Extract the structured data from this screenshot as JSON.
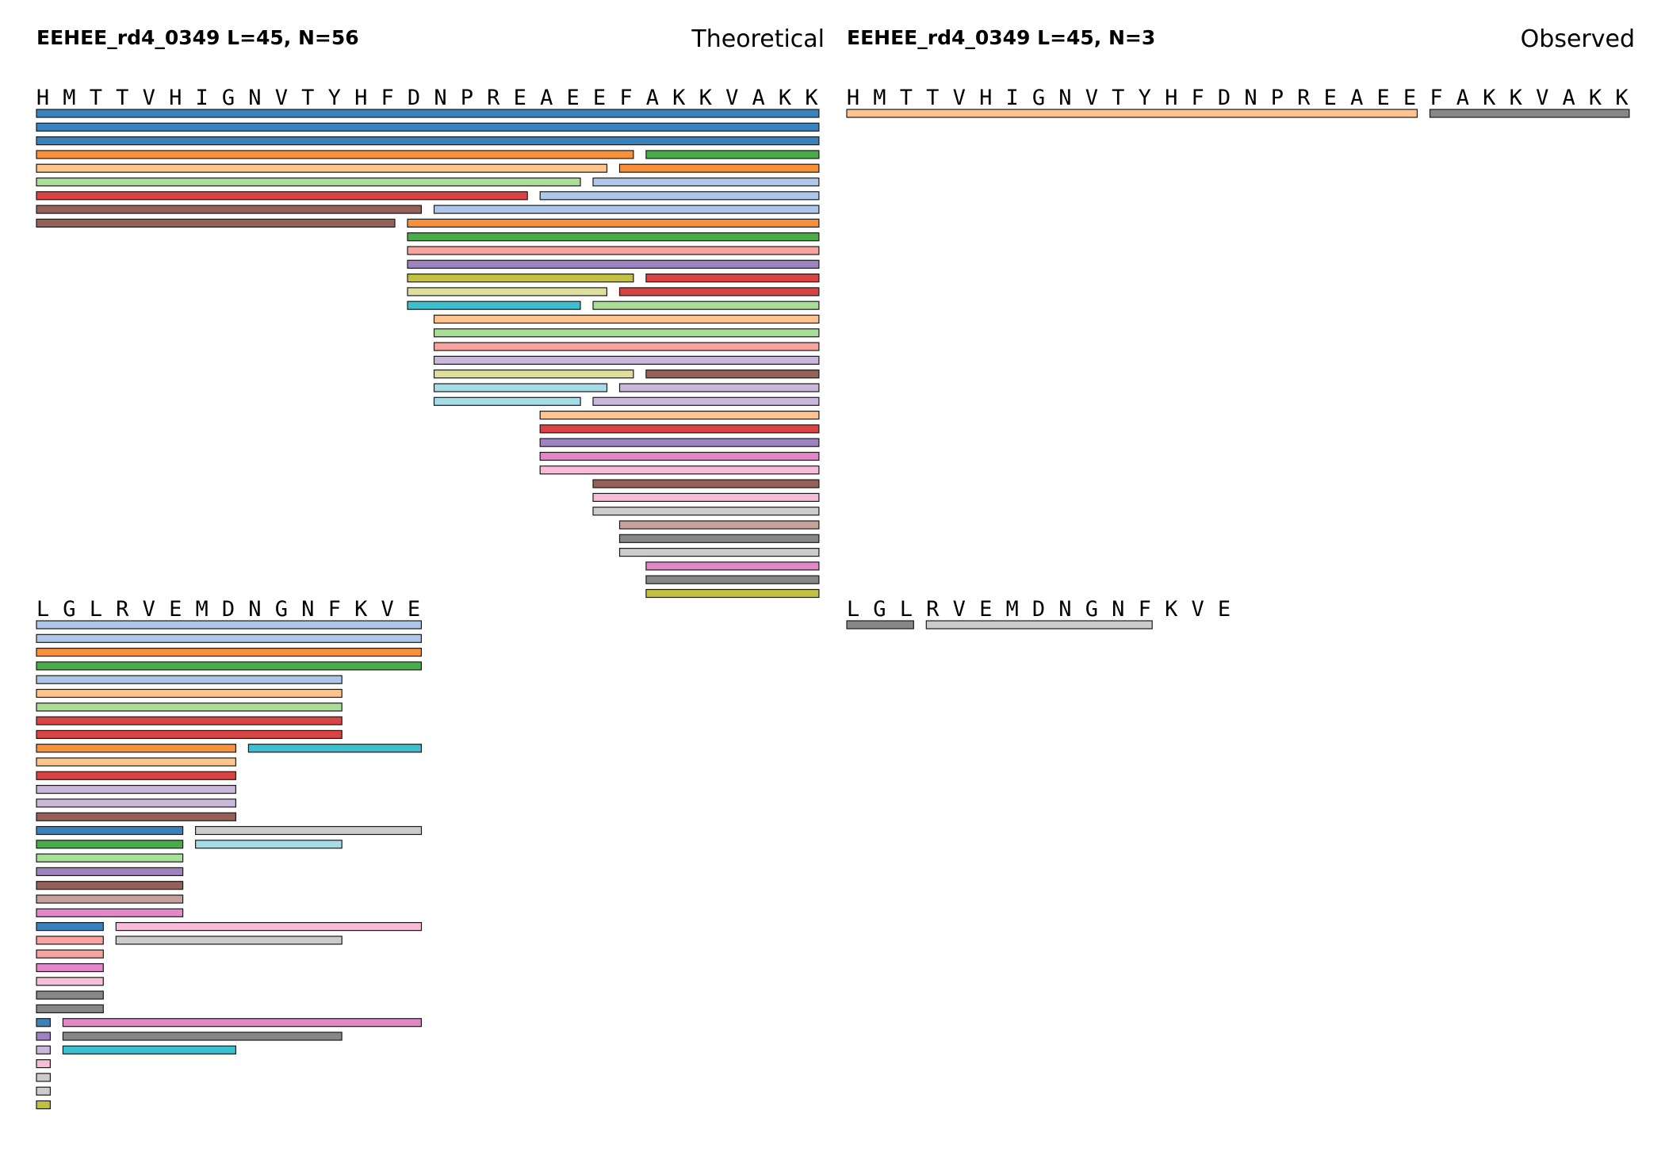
{
  "panels": {
    "theoretical": {
      "title": "EEHEE_rd4_0349  L=45, N=56",
      "label": "Theoretical"
    },
    "observed": {
      "title": "EEHEE_rd4_0349  L=45, N=3",
      "label": "Observed"
    }
  },
  "sequence_rows": [
    "HMTTVHIGNVTYHFDNPREAEEFAKKVAKK",
    "LGLRVEMDNGNFKVE"
  ],
  "palette": {
    "blue": "#3a82bc",
    "lblue": "#aec7e8",
    "orange": "#f7923a",
    "lorange": "#fdc48d",
    "green": "#4aab4a",
    "lgreen": "#a8de96",
    "red": "#d84344",
    "pink": "#f9a3a1",
    "purple": "#9e82c2",
    "lpurple": "#c9b8da",
    "brown": "#946058",
    "lbrown": "#c7a29a",
    "magenta": "#e387c8",
    "lpink": "#f7bcd7",
    "gray": "#878787",
    "lgray": "#cccccc",
    "olive": "#c2c042",
    "lolive": "#dfdf9d",
    "cyan": "#3cbfcf",
    "lcyan": "#a7dce6"
  },
  "theoretical_fragments": [
    {
      "start": 1,
      "end": 30,
      "level": 0,
      "color": "blue"
    },
    {
      "start": 1,
      "end": 30,
      "level": 1,
      "color": "blue"
    },
    {
      "start": 1,
      "end": 30,
      "level": 2,
      "color": "blue"
    },
    {
      "start": 1,
      "end": 23,
      "level": 3,
      "color": "orange"
    },
    {
      "start": 24,
      "end": 30,
      "level": 3,
      "color": "green"
    },
    {
      "start": 1,
      "end": 22,
      "level": 4,
      "color": "lorange"
    },
    {
      "start": 23,
      "end": 30,
      "level": 4,
      "color": "orange"
    },
    {
      "start": 1,
      "end": 21,
      "level": 5,
      "color": "lgreen"
    },
    {
      "start": 22,
      "end": 30,
      "level": 5,
      "color": "lblue"
    },
    {
      "start": 1,
      "end": 19,
      "level": 6,
      "color": "red"
    },
    {
      "start": 20,
      "end": 30,
      "level": 6,
      "color": "lblue"
    },
    {
      "start": 1,
      "end": 15,
      "level": 7,
      "color": "brown"
    },
    {
      "start": 16,
      "end": 30,
      "level": 7,
      "color": "lblue"
    },
    {
      "start": 1,
      "end": 14,
      "level": 8,
      "color": "brown"
    },
    {
      "start": 15,
      "end": 30,
      "level": 8,
      "color": "orange"
    },
    {
      "start": 15,
      "end": 30,
      "level": 9,
      "color": "green"
    },
    {
      "start": 15,
      "end": 30,
      "level": 10,
      "color": "pink"
    },
    {
      "start": 15,
      "end": 30,
      "level": 11,
      "color": "purple"
    },
    {
      "start": 15,
      "end": 23,
      "level": 12,
      "color": "olive"
    },
    {
      "start": 24,
      "end": 30,
      "level": 12,
      "color": "red"
    },
    {
      "start": 15,
      "end": 22,
      "level": 13,
      "color": "lolive"
    },
    {
      "start": 23,
      "end": 30,
      "level": 13,
      "color": "red"
    },
    {
      "start": 15,
      "end": 21,
      "level": 14,
      "color": "cyan"
    },
    {
      "start": 22,
      "end": 30,
      "level": 14,
      "color": "lgreen"
    },
    {
      "start": 16,
      "end": 30,
      "level": 15,
      "color": "lorange"
    },
    {
      "start": 16,
      "end": 30,
      "level": 16,
      "color": "lgreen"
    },
    {
      "start": 16,
      "end": 30,
      "level": 17,
      "color": "pink"
    },
    {
      "start": 16,
      "end": 30,
      "level": 18,
      "color": "lpurple"
    },
    {
      "start": 16,
      "end": 23,
      "level": 19,
      "color": "lolive"
    },
    {
      "start": 24,
      "end": 30,
      "level": 19,
      "color": "brown"
    },
    {
      "start": 16,
      "end": 22,
      "level": 20,
      "color": "lcyan"
    },
    {
      "start": 23,
      "end": 30,
      "level": 20,
      "color": "lpurple"
    },
    {
      "start": 16,
      "end": 21,
      "level": 21,
      "color": "lcyan"
    },
    {
      "start": 22,
      "end": 30,
      "level": 21,
      "color": "lpurple"
    },
    {
      "start": 20,
      "end": 30,
      "level": 22,
      "color": "lorange"
    },
    {
      "start": 20,
      "end": 30,
      "level": 23,
      "color": "red"
    },
    {
      "start": 20,
      "end": 30,
      "level": 24,
      "color": "purple"
    },
    {
      "start": 20,
      "end": 30,
      "level": 25,
      "color": "magenta"
    },
    {
      "start": 20,
      "end": 30,
      "level": 26,
      "color": "lpink"
    },
    {
      "start": 22,
      "end": 30,
      "level": 27,
      "color": "brown"
    },
    {
      "start": 22,
      "end": 30,
      "level": 28,
      "color": "lpink"
    },
    {
      "start": 22,
      "end": 30,
      "level": 29,
      "color": "lgray"
    },
    {
      "start": 23,
      "end": 30,
      "level": 30,
      "color": "lbrown"
    },
    {
      "start": 23,
      "end": 30,
      "level": 31,
      "color": "gray"
    },
    {
      "start": 23,
      "end": 30,
      "level": 32,
      "color": "lgray"
    },
    {
      "start": 24,
      "end": 30,
      "level": 33,
      "color": "magenta"
    },
    {
      "start": 24,
      "end": 30,
      "level": 34,
      "color": "gray"
    },
    {
      "start": 24,
      "end": 30,
      "level": 35,
      "color": "olive"
    },
    {
      "start": 31,
      "end": 45,
      "level": 0,
      "color": "lblue"
    },
    {
      "start": 31,
      "end": 45,
      "level": 1,
      "color": "lblue"
    },
    {
      "start": 31,
      "end": 45,
      "level": 2,
      "color": "orange"
    },
    {
      "start": 31,
      "end": 45,
      "level": 3,
      "color": "green"
    },
    {
      "start": 31,
      "end": 42,
      "level": 4,
      "color": "lblue"
    },
    {
      "start": 31,
      "end": 42,
      "level": 5,
      "color": "lorange"
    },
    {
      "start": 31,
      "end": 42,
      "level": 6,
      "color": "lgreen"
    },
    {
      "start": 31,
      "end": 42,
      "level": 7,
      "color": "red"
    },
    {
      "start": 31,
      "end": 42,
      "level": 8,
      "color": "red"
    },
    {
      "start": 31,
      "end": 38,
      "level": 9,
      "color": "orange"
    },
    {
      "start": 39,
      "end": 45,
      "level": 9,
      "color": "cyan"
    },
    {
      "start": 31,
      "end": 38,
      "level": 10,
      "color": "lorange"
    },
    {
      "start": 31,
      "end": 38,
      "level": 11,
      "color": "red"
    },
    {
      "start": 31,
      "end": 38,
      "level": 12,
      "color": "lpurple"
    },
    {
      "start": 31,
      "end": 38,
      "level": 13,
      "color": "lpurple"
    },
    {
      "start": 31,
      "end": 38,
      "level": 14,
      "color": "brown"
    },
    {
      "start": 31,
      "end": 36,
      "level": 15,
      "color": "blue"
    },
    {
      "start": 37,
      "end": 45,
      "level": 15,
      "color": "lgray"
    },
    {
      "start": 31,
      "end": 36,
      "level": 16,
      "color": "green"
    },
    {
      "start": 37,
      "end": 42,
      "level": 16,
      "color": "lcyan"
    },
    {
      "start": 31,
      "end": 36,
      "level": 17,
      "color": "lgreen"
    },
    {
      "start": 31,
      "end": 36,
      "level": 18,
      "color": "purple"
    },
    {
      "start": 31,
      "end": 36,
      "level": 19,
      "color": "brown"
    },
    {
      "start": 31,
      "end": 36,
      "level": 20,
      "color": "lbrown"
    },
    {
      "start": 31,
      "end": 36,
      "level": 21,
      "color": "magenta"
    },
    {
      "start": 31,
      "end": 33,
      "level": 22,
      "color": "blue"
    },
    {
      "start": 34,
      "end": 45,
      "level": 22,
      "color": "lpink"
    },
    {
      "start": 31,
      "end": 33,
      "level": 23,
      "color": "pink"
    },
    {
      "start": 34,
      "end": 42,
      "level": 23,
      "color": "lgray"
    },
    {
      "start": 31,
      "end": 33,
      "level": 24,
      "color": "pink"
    },
    {
      "start": 31,
      "end": 33,
      "level": 25,
      "color": "magenta"
    },
    {
      "start": 31,
      "end": 33,
      "level": 26,
      "color": "lpink"
    },
    {
      "start": 31,
      "end": 33,
      "level": 27,
      "color": "gray"
    },
    {
      "start": 31,
      "end": 33,
      "level": 28,
      "color": "gray"
    },
    {
      "start": 31,
      "end": 31,
      "level": 29,
      "color": "blue"
    },
    {
      "start": 32,
      "end": 45,
      "level": 29,
      "color": "magenta"
    },
    {
      "start": 31,
      "end": 31,
      "level": 30,
      "color": "purple"
    },
    {
      "start": 32,
      "end": 42,
      "level": 30,
      "color": "gray"
    },
    {
      "start": 31,
      "end": 31,
      "level": 31,
      "color": "lpurple"
    },
    {
      "start": 32,
      "end": 38,
      "level": 31,
      "color": "cyan"
    },
    {
      "start": 31,
      "end": 31,
      "level": 32,
      "color": "lpink"
    },
    {
      "start": 31,
      "end": 31,
      "level": 33,
      "color": "lgray"
    },
    {
      "start": 31,
      "end": 31,
      "level": 34,
      "color": "lgray"
    },
    {
      "start": 31,
      "end": 31,
      "level": 35,
      "color": "olive"
    }
  ],
  "observed_fragments": [
    {
      "start": 1,
      "end": 22,
      "level": 0,
      "color": "lorange"
    },
    {
      "start": 23,
      "end": 30,
      "level": 0,
      "color": "gray"
    },
    {
      "start": 31,
      "end": 33,
      "level": 0,
      "color": "gray"
    },
    {
      "start": 34,
      "end": 42,
      "level": 0,
      "color": "lgray"
    }
  ]
}
